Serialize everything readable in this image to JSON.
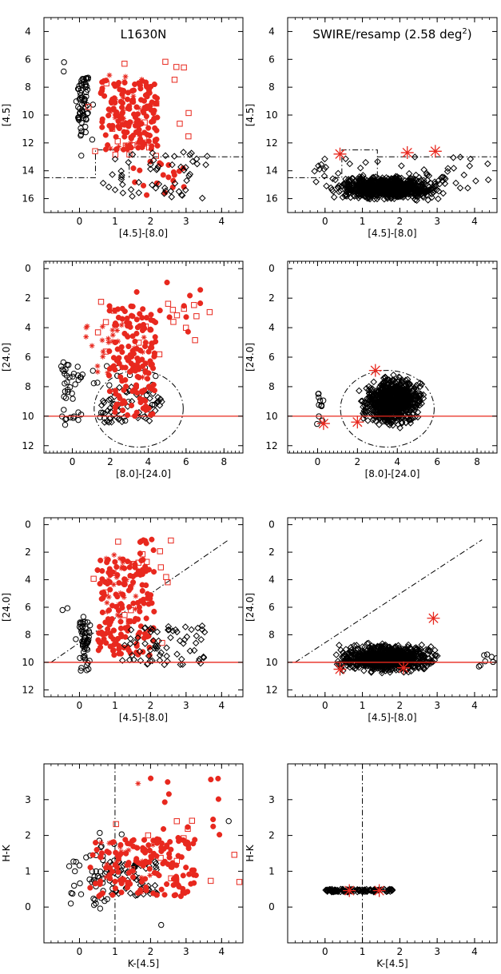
{
  "colors": {
    "red": "#e8281e",
    "black": "#000000"
  },
  "chart_data": [
    {
      "id": "p1",
      "type": "scatter",
      "title": "L1630N",
      "xlabel": "[4.5]-[8.0]",
      "ylabel": "[4.5]",
      "xlim": [
        -1,
        4.6
      ],
      "ylim": [
        17,
        3
      ],
      "yinverted": true,
      "xticks": [
        0,
        1,
        2,
        3,
        4
      ],
      "yticks": [
        4,
        6,
        8,
        10,
        12,
        14,
        16
      ],
      "seed": 11,
      "clusters": [
        {
          "marker": "circle",
          "color": "black",
          "n": 60,
          "x": [
            -0.05,
            0.25
          ],
          "y": [
            7.2,
            11.5
          ]
        },
        {
          "marker": "circle",
          "color": "black",
          "n": 6,
          "x": [
            -0.5,
            0.45
          ],
          "y": [
            6.2,
            13.5
          ]
        },
        {
          "marker": "dot",
          "color": "red",
          "n": 150,
          "x": [
            0.6,
            2.2
          ],
          "y": [
            7.5,
            12.5
          ]
        },
        {
          "marker": "dot",
          "color": "red",
          "n": 20,
          "x": [
            1.5,
            3.0
          ],
          "y": [
            13.2,
            16.0
          ]
        },
        {
          "marker": "star",
          "color": "red",
          "n": 25,
          "x": [
            0.8,
            1.8
          ],
          "y": [
            7.0,
            12.5
          ]
        },
        {
          "marker": "square",
          "color": "red",
          "n": 22,
          "x": [
            0.2,
            3.1
          ],
          "y": [
            5.8,
            13.0
          ]
        },
        {
          "marker": "diamond",
          "color": "black",
          "n": 55,
          "x": [
            0.6,
            3.6
          ],
          "y": [
            12.5,
            16.0
          ]
        }
      ],
      "guides": [
        {
          "style": "dashdot",
          "color": "black",
          "points": [
            [
              -1.0,
              14.5
            ],
            [
              0.45,
              14.5
            ],
            [
              0.45,
              12.5
            ],
            [
              1.4,
              12.5
            ],
            [
              1.4,
              14.5
            ]
          ]
        },
        {
          "style": "dashdot",
          "color": "black",
          "points": [
            [
              1.4,
              13.0
            ],
            [
              4.6,
              13.0
            ]
          ]
        }
      ]
    },
    {
      "id": "p2",
      "type": "scatter",
      "title": "SWIRE/resamp (2.58 deg",
      "title_superscript": "2",
      "title_suffix": ")",
      "xlabel": "[4.5]-[8.0]",
      "ylabel": "[4.5]",
      "xlim": [
        -1,
        4.6
      ],
      "ylim": [
        17,
        3
      ],
      "yinverted": true,
      "xticks": [
        0,
        1,
        2,
        3,
        4
      ],
      "yticks": [
        4,
        6,
        8,
        10,
        12,
        14,
        16
      ],
      "seed": 22,
      "clusters": [
        {
          "marker": "diamond",
          "color": "black",
          "n": 900,
          "x": [
            0.0,
            3.4
          ],
          "y": [
            14.2,
            16.3
          ],
          "shape": "blob"
        },
        {
          "marker": "diamond",
          "color": "black",
          "n": 60,
          "x": [
            -0.3,
            4.4
          ],
          "y": [
            13.0,
            15.5
          ]
        }
      ],
      "highlights": [
        {
          "marker": "bigstar",
          "color": "red",
          "x": 0.4,
          "y": 12.8
        },
        {
          "marker": "bigstar",
          "color": "red",
          "x": 2.2,
          "y": 12.7
        },
        {
          "marker": "bigstar",
          "color": "red",
          "x": 2.95,
          "y": 12.6
        }
      ],
      "guides": [
        {
          "style": "dashdot",
          "color": "black",
          "points": [
            [
              -1.0,
              14.5
            ],
            [
              0.45,
              14.5
            ],
            [
              0.45,
              12.5
            ],
            [
              1.4,
              12.5
            ],
            [
              1.4,
              14.5
            ]
          ]
        },
        {
          "style": "dashdot",
          "color": "black",
          "points": [
            [
              1.4,
              13.0
            ],
            [
              4.6,
              13.0
            ]
          ]
        }
      ]
    },
    {
      "id": "p3",
      "type": "scatter",
      "title": "",
      "xlabel": "[8.0]-[24.0]",
      "ylabel": "[24.0]",
      "xlim": [
        -1.5,
        9.0
      ],
      "ylim": [
        12.5,
        -0.5
      ],
      "yinverted": true,
      "xticks": [
        0,
        2,
        4,
        6,
        8
      ],
      "yticks": [
        0,
        2,
        4,
        6,
        8,
        10,
        12
      ],
      "seed": 33,
      "clusters": [
        {
          "marker": "circle",
          "color": "black",
          "n": 40,
          "x": [
            -0.6,
            0.6
          ],
          "y": [
            6.0,
            10.6
          ]
        },
        {
          "marker": "circle",
          "color": "black",
          "n": 25,
          "x": [
            1.0,
            4.6
          ],
          "y": [
            6.5,
            10.5
          ]
        },
        {
          "marker": "diamond",
          "color": "black",
          "n": 60,
          "x": [
            1.5,
            4.8
          ],
          "y": [
            8.0,
            10.5
          ]
        },
        {
          "marker": "dot",
          "color": "red",
          "n": 150,
          "x": [
            1.9,
            4.4
          ],
          "y": [
            2.5,
            10.0
          ]
        },
        {
          "marker": "dot",
          "color": "red",
          "n": 10,
          "x": [
            3.0,
            6.8
          ],
          "y": [
            0.6,
            6.3
          ]
        },
        {
          "marker": "star",
          "color": "red",
          "n": 25,
          "x": [
            0.5,
            4.0
          ],
          "y": [
            3.0,
            7.5
          ]
        },
        {
          "marker": "square",
          "color": "red",
          "n": 20,
          "x": [
            1.0,
            7.3
          ],
          "y": [
            1.0,
            6.5
          ]
        }
      ],
      "ellipse": {
        "cx": 3.5,
        "cy": 9.5,
        "rx": 2.35,
        "ry": 2.6,
        "style": "dashdot"
      },
      "hline": {
        "y": 10.0,
        "color": "red"
      }
    },
    {
      "id": "p4",
      "type": "scatter",
      "title": "",
      "xlabel": "[8.0]-[24.0]",
      "ylabel": "[24.0]",
      "xlim": [
        -1.5,
        9.0
      ],
      "ylim": [
        12.5,
        -0.5
      ],
      "yinverted": true,
      "xticks": [
        0,
        2,
        4,
        6,
        8
      ],
      "yticks": [
        0,
        2,
        4,
        6,
        8,
        10,
        12
      ],
      "seed": 44,
      "clusters": [
        {
          "marker": "diamond",
          "color": "black",
          "n": 850,
          "x": [
            1.9,
            5.6
          ],
          "y": [
            7.0,
            11.0
          ],
          "shape": "blob"
        },
        {
          "marker": "circle",
          "color": "black",
          "n": 12,
          "x": [
            -0.1,
            0.3
          ],
          "y": [
            8.0,
            10.6
          ]
        }
      ],
      "highlights": [
        {
          "marker": "bigstar",
          "color": "red",
          "x": 0.3,
          "y": 10.5
        },
        {
          "marker": "bigstar",
          "color": "red",
          "x": 2.0,
          "y": 10.4
        },
        {
          "marker": "bigstar",
          "color": "red",
          "x": 2.9,
          "y": 6.9
        }
      ],
      "ellipse": {
        "cx": 3.5,
        "cy": 9.5,
        "rx": 2.35,
        "ry": 2.6,
        "style": "dashdot"
      },
      "hline": {
        "y": 10.0,
        "color": "red"
      }
    },
    {
      "id": "p5",
      "type": "scatter",
      "title": "",
      "xlabel": "[4.5]-[8.0]",
      "ylabel": "[24.0]",
      "xlim": [
        -1,
        4.6
      ],
      "ylim": [
        12.5,
        -0.5
      ],
      "yinverted": true,
      "xticks": [
        0,
        1,
        2,
        3,
        4
      ],
      "yticks": [
        0,
        2,
        4,
        6,
        8,
        10,
        12
      ],
      "seed": 55,
      "clusters": [
        {
          "marker": "circle",
          "color": "black",
          "n": 55,
          "x": [
            0.0,
            0.3
          ],
          "y": [
            7.0,
            10.6
          ]
        },
        {
          "marker": "circle",
          "color": "black",
          "n": 6,
          "x": [
            -0.5,
            0.4
          ],
          "y": [
            5.5,
            9.0
          ]
        },
        {
          "marker": "dot",
          "color": "red",
          "n": 150,
          "x": [
            0.5,
            2.1
          ],
          "y": [
            2.5,
            9.5
          ]
        },
        {
          "marker": "dot",
          "color": "red",
          "n": 8,
          "x": [
            1.7,
            2.1
          ],
          "y": [
            0.5,
            2.5
          ]
        },
        {
          "marker": "star",
          "color": "red",
          "n": 25,
          "x": [
            0.7,
            1.7
          ],
          "y": [
            2.0,
            7.0
          ]
        },
        {
          "marker": "square",
          "color": "red",
          "n": 18,
          "x": [
            0.2,
            2.9
          ],
          "y": [
            0.8,
            8.7
          ]
        },
        {
          "marker": "diamond",
          "color": "black",
          "n": 70,
          "x": [
            1.2,
            3.6
          ],
          "y": [
            7.3,
            10.2
          ]
        }
      ],
      "guides": [
        {
          "style": "dashdot",
          "color": "black",
          "points": [
            [
              -0.8,
              10.0
            ],
            [
              4.2,
              1.1
            ]
          ]
        }
      ],
      "hline": {
        "y": 10.0,
        "color": "red"
      }
    },
    {
      "id": "p6",
      "type": "scatter",
      "title": "",
      "xlabel": "[4.5]-[8.0]",
      "ylabel": "[24.0]",
      "xlim": [
        -1,
        4.6
      ],
      "ylim": [
        12.5,
        -0.5
      ],
      "yinverted": true,
      "xticks": [
        0,
        1,
        2,
        3,
        4
      ],
      "yticks": [
        0,
        2,
        4,
        6,
        8,
        10,
        12
      ],
      "seed": 66,
      "clusters": [
        {
          "marker": "diamond",
          "color": "black",
          "n": 900,
          "x": [
            0.0,
            3.3
          ],
          "y": [
            8.5,
            11.0
          ],
          "shape": "blob"
        },
        {
          "marker": "circle",
          "color": "black",
          "n": 8,
          "x": [
            4.1,
            4.6
          ],
          "y": [
            9.3,
            10.5
          ]
        }
      ],
      "highlights": [
        {
          "marker": "bigstar",
          "color": "red",
          "x": 0.4,
          "y": 10.5
        },
        {
          "marker": "bigstar",
          "color": "red",
          "x": 2.1,
          "y": 10.4
        },
        {
          "marker": "bigstar",
          "color": "red",
          "x": 2.9,
          "y": 6.8
        }
      ],
      "guides": [
        {
          "style": "dashdot",
          "color": "black",
          "points": [
            [
              -0.8,
              10.0
            ],
            [
              4.2,
              1.1
            ]
          ]
        }
      ],
      "hline": {
        "y": 10.0,
        "color": "red"
      }
    },
    {
      "id": "p7",
      "type": "scatter",
      "title": "",
      "xlabel": "K-[4.5]",
      "ylabel": "H-K",
      "xlim": [
        -1,
        4.6
      ],
      "ylim": [
        -1.0,
        4.0
      ],
      "yinverted": false,
      "xticks": [
        0,
        1,
        2,
        3,
        4
      ],
      "yticks": [
        0,
        1,
        2,
        3
      ],
      "seed": 77,
      "clusters": [
        {
          "marker": "circle",
          "color": "black",
          "n": 45,
          "x": [
            -0.3,
            1.0
          ],
          "y": [
            -0.05,
            1.5
          ]
        },
        {
          "marker": "circle",
          "color": "black",
          "n": 6,
          "x": [
            0.0,
            1.2
          ],
          "y": [
            1.5,
            2.1
          ]
        },
        {
          "marker": "diamond",
          "color": "black",
          "n": 60,
          "x": [
            0.8,
            2.2
          ],
          "y": [
            0.3,
            1.3
          ]
        },
        {
          "marker": "dot",
          "color": "red",
          "n": 150,
          "x": [
            0.3,
            3.3
          ],
          "y": [
            0.3,
            1.9
          ]
        },
        {
          "marker": "dot",
          "color": "red",
          "n": 14,
          "x": [
            2.0,
            4.0
          ],
          "y": [
            1.7,
            3.6
          ]
        },
        {
          "marker": "star",
          "color": "red",
          "n": 18,
          "x": [
            0.5,
            2.2
          ],
          "y": [
            0.4,
            1.8
          ]
        },
        {
          "marker": "square",
          "color": "red",
          "n": 14,
          "x": [
            0.2,
            4.4
          ],
          "y": [
            0.6,
            2.5
          ]
        }
      ],
      "outliers": [
        {
          "marker": "star",
          "color": "red",
          "x": 1.65,
          "y": 3.45
        },
        {
          "marker": "circle",
          "color": "black",
          "x": 2.3,
          "y": -0.5
        },
        {
          "marker": "circle",
          "color": "black",
          "x": 4.2,
          "y": 2.4
        },
        {
          "marker": "square",
          "color": "red",
          "x": 4.5,
          "y": 0.7
        }
      ],
      "guides": [
        {
          "style": "dashdot",
          "color": "black",
          "points": [
            [
              1.0,
              -1.0
            ],
            [
              1.0,
              4.0
            ]
          ]
        }
      ]
    },
    {
      "id": "p8",
      "type": "scatter",
      "title": "",
      "xlabel": "K-[4.5]",
      "ylabel": "H-K",
      "xlim": [
        -1,
        4.6
      ],
      "ylim": [
        -1.0,
        4.0
      ],
      "yinverted": false,
      "xticks": [
        0,
        1,
        2,
        3,
        4
      ],
      "yticks": [
        0,
        1,
        2,
        3
      ],
      "seed": 88,
      "clusters": [
        {
          "marker": "diamond",
          "color": "black",
          "n": 110,
          "x": [
            0.0,
            1.8
          ],
          "y": [
            0.42,
            0.5
          ]
        }
      ],
      "highlights": [
        {
          "marker": "bigstar",
          "color": "red",
          "x": 0.65,
          "y": 0.46
        },
        {
          "marker": "bigstar",
          "color": "red",
          "x": 1.45,
          "y": 0.46
        }
      ],
      "guides": [
        {
          "style": "dashdot",
          "color": "black",
          "points": [
            [
              1.0,
              -1.0
            ],
            [
              1.0,
              4.0
            ]
          ]
        }
      ]
    }
  ]
}
